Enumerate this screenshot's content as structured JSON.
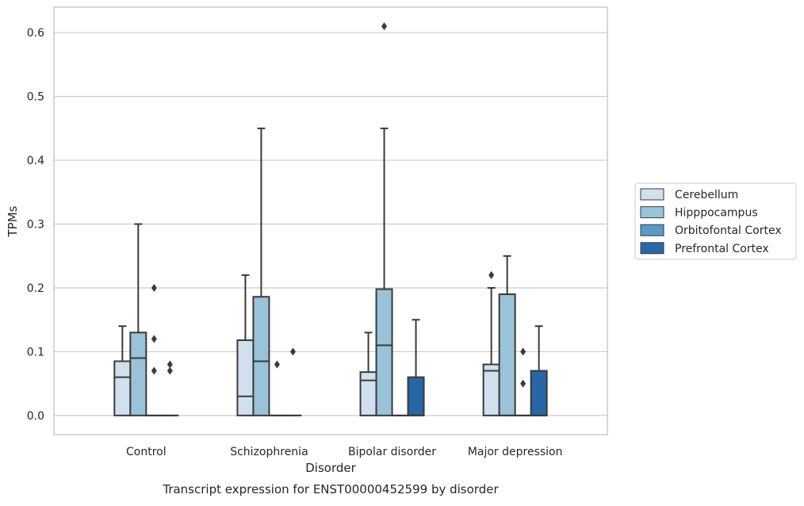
{
  "chart_data": {
    "type": "box",
    "caption": "Transcript expression for ENST00000452599 by disorder",
    "xlabel": "Disorder",
    "ylabel": "TPMs",
    "ylim": [
      -0.03,
      0.64
    ],
    "yticks": [
      "0.0",
      "0.1",
      "0.2",
      "0.3",
      "0.4",
      "0.5",
      "0.6"
    ],
    "ytick_values": [
      0.0,
      0.1,
      0.2,
      0.3,
      0.4,
      0.5,
      0.6
    ],
    "grid": true,
    "legend_position": "right",
    "categories": [
      "Control",
      "Schizophrenia",
      "Bipolar disorder",
      "Major depression"
    ],
    "series": [
      {
        "name": "Cerebellum",
        "color": "#d0e0ef",
        "boxes": [
          {
            "whislo": 0.0,
            "q1": 0.0,
            "med": 0.06,
            "q3": 0.085,
            "whishi": 0.14,
            "fliers": []
          },
          {
            "whislo": 0.0,
            "q1": 0.0,
            "med": 0.03,
            "q3": 0.118,
            "whishi": 0.22,
            "fliers": []
          },
          {
            "whislo": 0.0,
            "q1": 0.0,
            "med": 0.055,
            "q3": 0.068,
            "whishi": 0.13,
            "fliers": []
          },
          {
            "whislo": 0.0,
            "q1": 0.0,
            "med": 0.07,
            "q3": 0.08,
            "whishi": 0.2,
            "fliers": [
              0.22
            ]
          }
        ]
      },
      {
        "name": "Hipppocampus",
        "color": "#9ac2d9",
        "boxes": [
          {
            "whislo": 0.0,
            "q1": 0.0,
            "med": 0.09,
            "q3": 0.13,
            "whishi": 0.3,
            "fliers": []
          },
          {
            "whislo": 0.0,
            "q1": 0.0,
            "med": 0.085,
            "q3": 0.186,
            "whishi": 0.45,
            "fliers": []
          },
          {
            "whislo": 0.0,
            "q1": 0.0,
            "med": 0.11,
            "q3": 0.198,
            "whishi": 0.45,
            "fliers": [
              0.61
            ]
          },
          {
            "whislo": 0.0,
            "q1": 0.0,
            "med": 0.0,
            "q3": 0.19,
            "whishi": 0.25,
            "fliers": []
          }
        ]
      },
      {
        "name": "Orbitofontal Cortex",
        "color": "#5b9ac8",
        "boxes": [
          {
            "whislo": 0.0,
            "q1": 0.0,
            "med": 0.0,
            "q3": 0.0,
            "whishi": 0.0,
            "fliers": [
              0.2,
              0.12,
              0.07
            ]
          },
          {
            "whislo": 0.0,
            "q1": 0.0,
            "med": 0.0,
            "q3": 0.0,
            "whishi": 0.0,
            "fliers": [
              0.08
            ]
          },
          {
            "whislo": 0.0,
            "q1": 0.0,
            "med": 0.0,
            "q3": 0.0,
            "whishi": 0.0,
            "fliers": []
          },
          {
            "whislo": 0.0,
            "q1": 0.0,
            "med": 0.0,
            "q3": 0.0,
            "whishi": 0.0,
            "fliers": [
              0.1,
              0.05
            ]
          }
        ]
      },
      {
        "name": "Prefrontal Cortex",
        "color": "#2866a6",
        "boxes": [
          {
            "whislo": 0.0,
            "q1": 0.0,
            "med": 0.0,
            "q3": 0.0,
            "whishi": 0.0,
            "fliers": [
              0.08,
              0.07
            ]
          },
          {
            "whislo": 0.0,
            "q1": 0.0,
            "med": 0.0,
            "q3": 0.0,
            "whishi": 0.0,
            "fliers": [
              0.1
            ]
          },
          {
            "whislo": 0.0,
            "q1": 0.0,
            "med": 0.0,
            "q3": 0.06,
            "whishi": 0.15,
            "fliers": []
          },
          {
            "whislo": 0.0,
            "q1": 0.0,
            "med": 0.0,
            "q3": 0.07,
            "whishi": 0.14,
            "fliers": []
          }
        ]
      }
    ]
  }
}
